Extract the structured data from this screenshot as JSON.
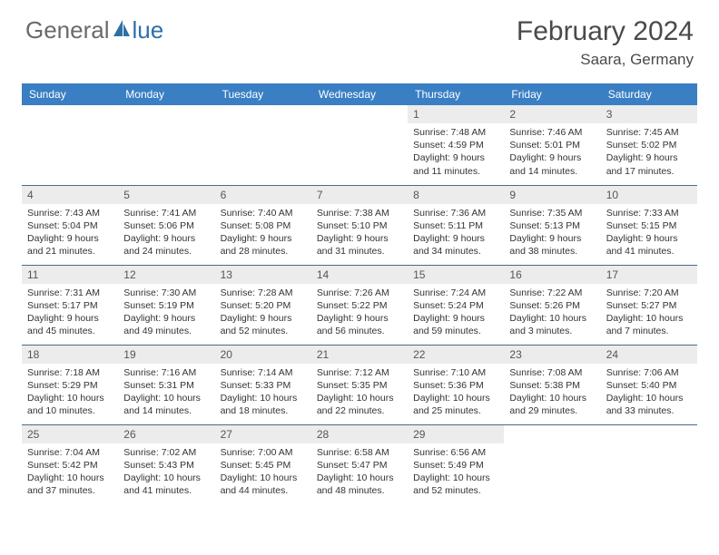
{
  "logo": {
    "text_left": "General",
    "text_right": "lue",
    "brand_color": "#2f6fa7",
    "gray_color": "#6a6a6a"
  },
  "title": "February 2024",
  "location": "Saara, Germany",
  "colors": {
    "header_bg": "#3a7fc4",
    "header_text": "#ffffff",
    "daynum_bg": "#ececec",
    "row_border": "#4a6a8a",
    "body_text": "#333333"
  },
  "daysOfWeek": [
    "Sunday",
    "Monday",
    "Tuesday",
    "Wednesday",
    "Thursday",
    "Friday",
    "Saturday"
  ],
  "weeks": [
    [
      null,
      null,
      null,
      null,
      {
        "n": "1",
        "sunrise": "7:48 AM",
        "sunset": "4:59 PM",
        "daylight": "9 hours and 11 minutes."
      },
      {
        "n": "2",
        "sunrise": "7:46 AM",
        "sunset": "5:01 PM",
        "daylight": "9 hours and 14 minutes."
      },
      {
        "n": "3",
        "sunrise": "7:45 AM",
        "sunset": "5:02 PM",
        "daylight": "9 hours and 17 minutes."
      }
    ],
    [
      {
        "n": "4",
        "sunrise": "7:43 AM",
        "sunset": "5:04 PM",
        "daylight": "9 hours and 21 minutes."
      },
      {
        "n": "5",
        "sunrise": "7:41 AM",
        "sunset": "5:06 PM",
        "daylight": "9 hours and 24 minutes."
      },
      {
        "n": "6",
        "sunrise": "7:40 AM",
        "sunset": "5:08 PM",
        "daylight": "9 hours and 28 minutes."
      },
      {
        "n": "7",
        "sunrise": "7:38 AM",
        "sunset": "5:10 PM",
        "daylight": "9 hours and 31 minutes."
      },
      {
        "n": "8",
        "sunrise": "7:36 AM",
        "sunset": "5:11 PM",
        "daylight": "9 hours and 34 minutes."
      },
      {
        "n": "9",
        "sunrise": "7:35 AM",
        "sunset": "5:13 PM",
        "daylight": "9 hours and 38 minutes."
      },
      {
        "n": "10",
        "sunrise": "7:33 AM",
        "sunset": "5:15 PM",
        "daylight": "9 hours and 41 minutes."
      }
    ],
    [
      {
        "n": "11",
        "sunrise": "7:31 AM",
        "sunset": "5:17 PM",
        "daylight": "9 hours and 45 minutes."
      },
      {
        "n": "12",
        "sunrise": "7:30 AM",
        "sunset": "5:19 PM",
        "daylight": "9 hours and 49 minutes."
      },
      {
        "n": "13",
        "sunrise": "7:28 AM",
        "sunset": "5:20 PM",
        "daylight": "9 hours and 52 minutes."
      },
      {
        "n": "14",
        "sunrise": "7:26 AM",
        "sunset": "5:22 PM",
        "daylight": "9 hours and 56 minutes."
      },
      {
        "n": "15",
        "sunrise": "7:24 AM",
        "sunset": "5:24 PM",
        "daylight": "9 hours and 59 minutes."
      },
      {
        "n": "16",
        "sunrise": "7:22 AM",
        "sunset": "5:26 PM",
        "daylight": "10 hours and 3 minutes."
      },
      {
        "n": "17",
        "sunrise": "7:20 AM",
        "sunset": "5:27 PM",
        "daylight": "10 hours and 7 minutes."
      }
    ],
    [
      {
        "n": "18",
        "sunrise": "7:18 AM",
        "sunset": "5:29 PM",
        "daylight": "10 hours and 10 minutes."
      },
      {
        "n": "19",
        "sunrise": "7:16 AM",
        "sunset": "5:31 PM",
        "daylight": "10 hours and 14 minutes."
      },
      {
        "n": "20",
        "sunrise": "7:14 AM",
        "sunset": "5:33 PM",
        "daylight": "10 hours and 18 minutes."
      },
      {
        "n": "21",
        "sunrise": "7:12 AM",
        "sunset": "5:35 PM",
        "daylight": "10 hours and 22 minutes."
      },
      {
        "n": "22",
        "sunrise": "7:10 AM",
        "sunset": "5:36 PM",
        "daylight": "10 hours and 25 minutes."
      },
      {
        "n": "23",
        "sunrise": "7:08 AM",
        "sunset": "5:38 PM",
        "daylight": "10 hours and 29 minutes."
      },
      {
        "n": "24",
        "sunrise": "7:06 AM",
        "sunset": "5:40 PM",
        "daylight": "10 hours and 33 minutes."
      }
    ],
    [
      {
        "n": "25",
        "sunrise": "7:04 AM",
        "sunset": "5:42 PM",
        "daylight": "10 hours and 37 minutes."
      },
      {
        "n": "26",
        "sunrise": "7:02 AM",
        "sunset": "5:43 PM",
        "daylight": "10 hours and 41 minutes."
      },
      {
        "n": "27",
        "sunrise": "7:00 AM",
        "sunset": "5:45 PM",
        "daylight": "10 hours and 44 minutes."
      },
      {
        "n": "28",
        "sunrise": "6:58 AM",
        "sunset": "5:47 PM",
        "daylight": "10 hours and 48 minutes."
      },
      {
        "n": "29",
        "sunrise": "6:56 AM",
        "sunset": "5:49 PM",
        "daylight": "10 hours and 52 minutes."
      },
      null,
      null
    ]
  ],
  "labels": {
    "sunrise": "Sunrise:",
    "sunset": "Sunset:",
    "daylight": "Daylight:"
  }
}
